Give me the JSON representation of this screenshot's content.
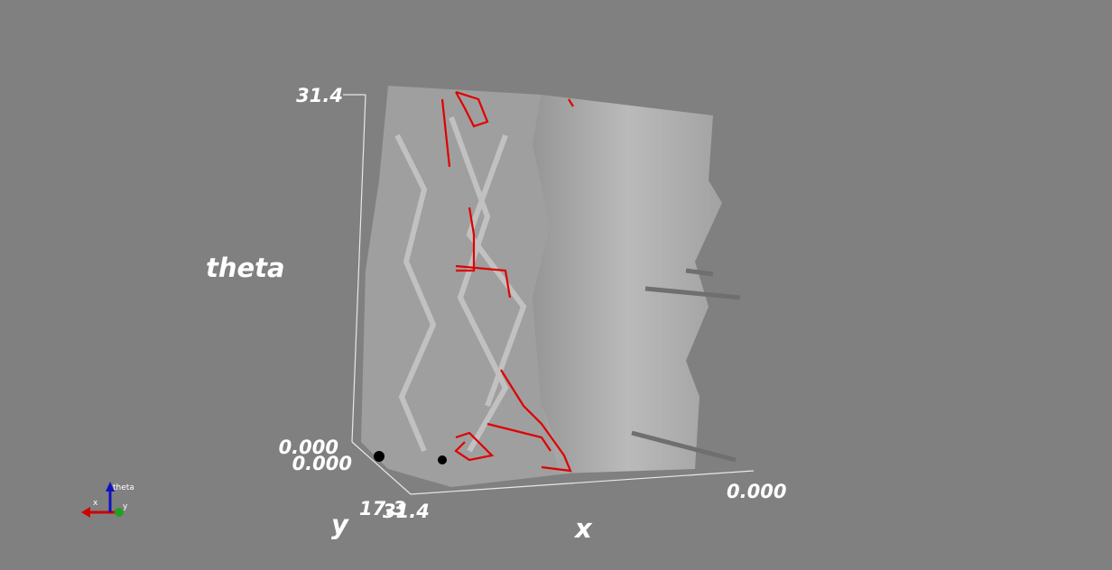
{
  "axes": {
    "theta": {
      "title": "theta",
      "ticks": [
        "0.000",
        "31.4"
      ]
    },
    "y": {
      "title": "y",
      "ticks": [
        "0.000",
        "17.3"
      ]
    },
    "x": {
      "title": "x",
      "ticks": [
        "31.4",
        "0.000"
      ]
    }
  },
  "orientation_widget": {
    "labels": [
      "x",
      "y",
      "theta"
    ]
  }
}
